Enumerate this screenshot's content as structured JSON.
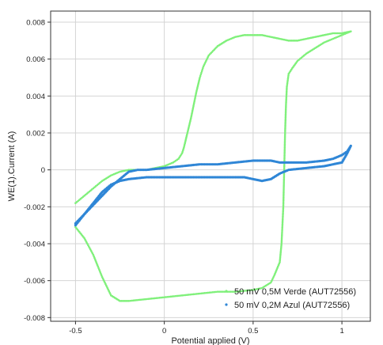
{
  "chart_data": {
    "type": "scatter",
    "title": "",
    "xlabel": "Potential applied (V)",
    "ylabel": "WE(1).Current (A)",
    "xlim": [
      -0.64,
      1.16
    ],
    "ylim": [
      -0.0082,
      0.0086
    ],
    "x_ticks": [
      -0.5,
      0,
      0.5,
      1
    ],
    "x_tick_labels": [
      "-0.5",
      "0",
      "0.5",
      "1"
    ],
    "y_ticks": [
      -0.008,
      -0.006,
      -0.004,
      -0.002,
      0,
      0.002,
      0.004,
      0.006,
      0.008
    ],
    "y_tick_labels": [
      "-0.008",
      "-0.006",
      "-0.004",
      "-0.002",
      "0",
      "0.002",
      "0.004",
      "0.006",
      "0.008"
    ],
    "grid": true,
    "legend_position": "bottom-right",
    "series": [
      {
        "name": "50 mV 0,5M Verde (AUT72556)",
        "color": "#7ff07a",
        "x": [
          -0.5,
          -0.45,
          -0.4,
          -0.35,
          -0.3,
          -0.25,
          -0.2,
          -0.15,
          -0.1,
          -0.05,
          0,
          0.05,
          0.08,
          0.1,
          0.11,
          0.12,
          0.13,
          0.15,
          0.18,
          0.2,
          0.22,
          0.25,
          0.3,
          0.35,
          0.4,
          0.45,
          0.5,
          0.55,
          0.6,
          0.65,
          0.7,
          0.75,
          0.8,
          0.85,
          0.9,
          0.95,
          1.0,
          1.05,
          1.0,
          0.95,
          0.9,
          0.85,
          0.8,
          0.75,
          0.72,
          0.7,
          0.69,
          0.685,
          0.68,
          0.675,
          0.67,
          0.66,
          0.65,
          0.62,
          0.6,
          0.55,
          0.5,
          0.4,
          0.3,
          0.2,
          0.1,
          0,
          -0.1,
          -0.2,
          -0.25,
          -0.3,
          -0.35,
          -0.4,
          -0.45,
          -0.5
        ],
        "y": [
          -0.0018,
          -0.0014,
          -0.001,
          -0.0006,
          -0.0003,
          -0.0001,
          0,
          0,
          0,
          0.0001,
          0.0002,
          0.0004,
          0.0006,
          0.0009,
          0.0012,
          0.0016,
          0.002,
          0.0028,
          0.0042,
          0.005,
          0.0056,
          0.0062,
          0.0067,
          0.007,
          0.0072,
          0.0073,
          0.0073,
          0.0073,
          0.0072,
          0.0071,
          0.007,
          0.007,
          0.0071,
          0.0072,
          0.0073,
          0.0074,
          0.0074,
          0.0075,
          0.0073,
          0.0071,
          0.0069,
          0.0066,
          0.0063,
          0.0059,
          0.0055,
          0.0052,
          0.0045,
          0.0035,
          0.002,
          0,
          -0.002,
          -0.004,
          -0.005,
          -0.0057,
          -0.0061,
          -0.0064,
          -0.0065,
          -0.0066,
          -0.0066,
          -0.0067,
          -0.0068,
          -0.0069,
          -0.007,
          -0.0071,
          -0.0071,
          -0.0068,
          -0.0058,
          -0.0046,
          -0.0037,
          -0.0031
        ]
      },
      {
        "name": "50 mV 0,2M Azul (AUT72556)",
        "color": "#2f86d6",
        "x": [
          -0.5,
          -0.45,
          -0.4,
          -0.35,
          -0.3,
          -0.25,
          -0.2,
          -0.15,
          -0.1,
          0,
          0.1,
          0.2,
          0.3,
          0.4,
          0.5,
          0.55,
          0.6,
          0.65,
          0.7,
          0.8,
          0.9,
          0.95,
          1.0,
          1.03,
          1.05,
          1.03,
          1.0,
          0.95,
          0.9,
          0.8,
          0.7,
          0.65,
          0.6,
          0.55,
          0.5,
          0.45,
          0.4,
          0.3,
          0.2,
          0.1,
          0,
          -0.1,
          -0.2,
          -0.25,
          -0.3,
          -0.35,
          -0.4,
          -0.45,
          -0.5
        ],
        "y": [
          -0.0029,
          -0.0024,
          -0.0019,
          -0.0014,
          -0.0009,
          -0.0005,
          -0.0001,
          0,
          0,
          0.0001,
          0.0002,
          0.0003,
          0.0003,
          0.0004,
          0.0005,
          0.0005,
          0.0005,
          0.0004,
          0.0004,
          0.0004,
          0.0005,
          0.0006,
          0.0008,
          0.001,
          0.0013,
          0.0009,
          0.0004,
          0.0003,
          0.0002,
          0.0001,
          0,
          -0.0002,
          -0.0005,
          -0.0006,
          -0.0005,
          -0.0004,
          -0.0004,
          -0.0004,
          -0.0004,
          -0.0004,
          -0.0004,
          -0.0004,
          -0.0005,
          -0.0006,
          -0.0008,
          -0.0012,
          -0.0018,
          -0.0024,
          -0.003
        ]
      }
    ]
  }
}
